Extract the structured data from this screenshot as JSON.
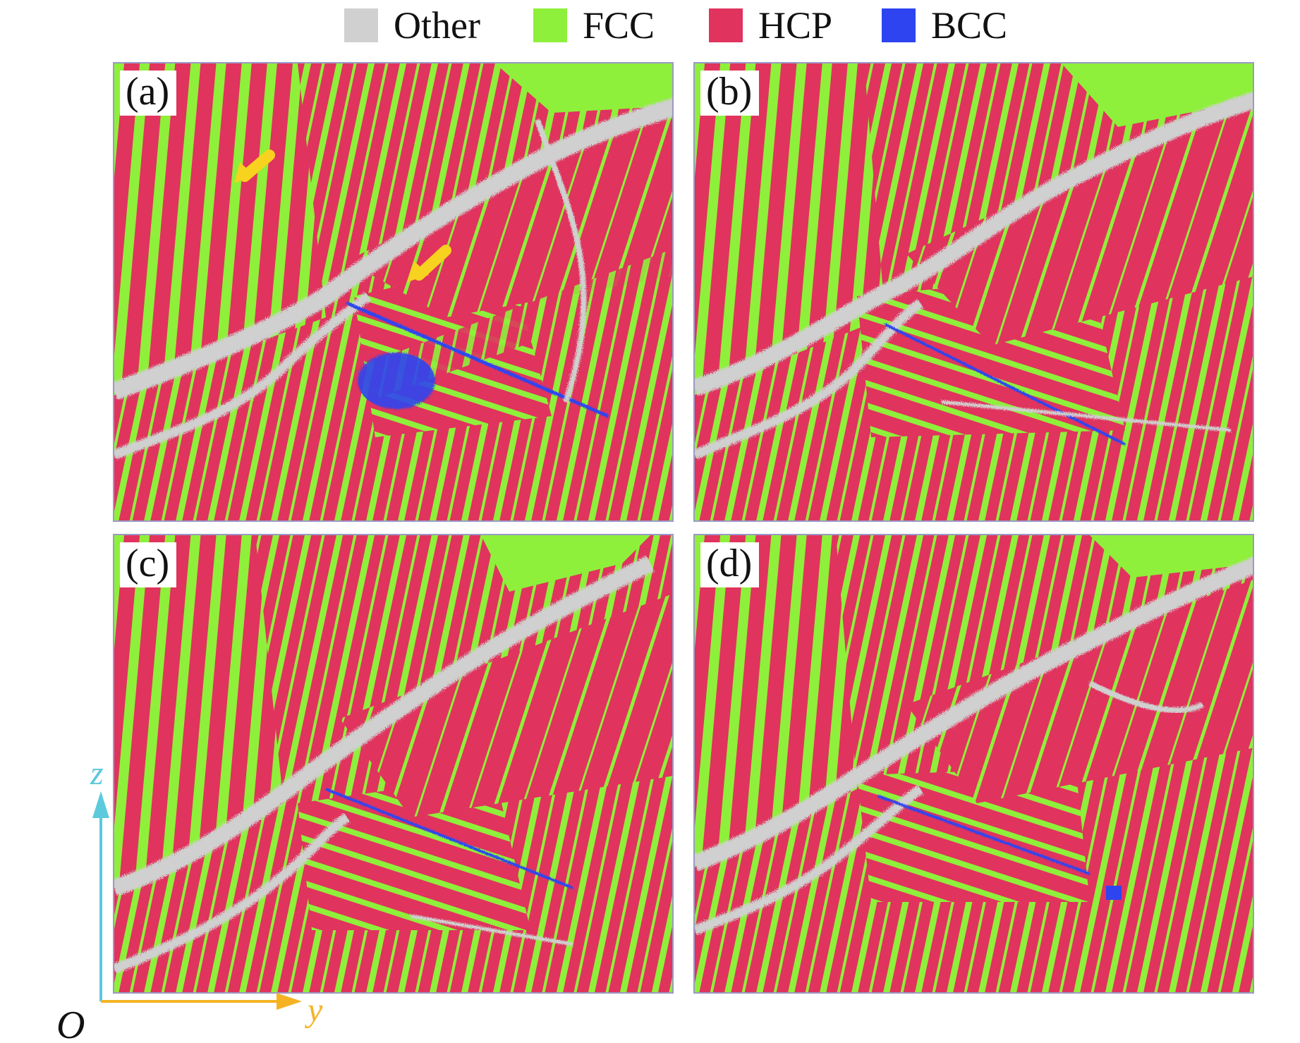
{
  "legend": {
    "items": [
      {
        "label": "Other",
        "color": "#cfd0cf"
      },
      {
        "label": "FCC",
        "color": "#8ef03a"
      },
      {
        "label": "HCP",
        "color": "#e0335e"
      },
      {
        "label": "BCC",
        "color": "#2d44f0"
      }
    ]
  },
  "panels": [
    {
      "label": "(a)"
    },
    {
      "label": "(b)"
    },
    {
      "label": "(c)"
    },
    {
      "label": "(d)"
    }
  ],
  "axes": {
    "origin": "O",
    "horizontal": "y",
    "vertical": "z",
    "horizontal_color": "#f5b324",
    "vertical_color": "#5cc9dd"
  },
  "annotation_color": "#f7d21e"
}
